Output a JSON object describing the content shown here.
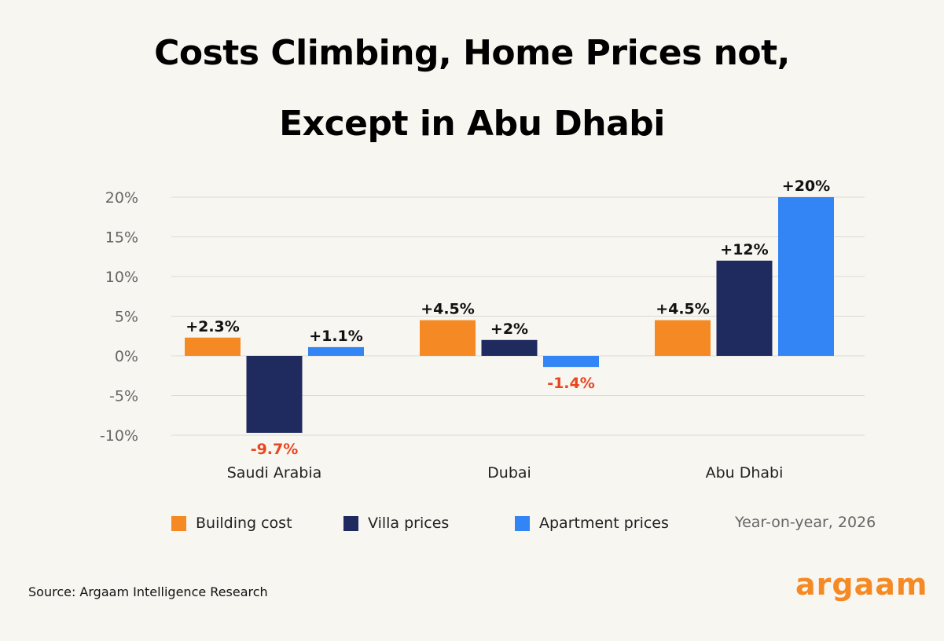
{
  "title_line1": "Costs Climbing, Home Prices not,",
  "title_line2": "Except in Abu Dhabi",
  "legend_note": "Year-on-year, 2026",
  "source": "Source: Argaam Intelligence Research",
  "logo_text": "argaam",
  "colors": {
    "building_cost": "#f58a24",
    "villa_prices": "#1f2a5e",
    "apartment_prices": "#3384f5",
    "negative_label": "#e8461e",
    "gridline": "#dcdad5",
    "tick_label": "#666666",
    "logo": "#f58a24"
  },
  "chart_data": {
    "type": "bar",
    "categories": [
      "Saudi Arabia",
      "Dubai",
      "Abu Dhabi"
    ],
    "series": [
      {
        "name": "Building cost",
        "color_key": "building_cost",
        "values": [
          2.3,
          4.5,
          4.5
        ],
        "labels": [
          "+2.3%",
          "+4.5%",
          "+4.5%"
        ]
      },
      {
        "name": "Villa prices",
        "color_key": "villa_prices",
        "values": [
          -9.7,
          2,
          12
        ],
        "labels": [
          "-9.7%",
          "+2%",
          "+12%"
        ]
      },
      {
        "name": "Apartment prices",
        "color_key": "apartment_prices",
        "values": [
          1.1,
          -1.4,
          20
        ],
        "labels": [
          "+1.1%",
          "-1.4%",
          "+20%"
        ]
      }
    ],
    "ylim": [
      -10,
      20
    ],
    "yticks": [
      -10,
      -5,
      0,
      5,
      10,
      15,
      20
    ],
    "ytick_labels": [
      "-10%",
      "-5%",
      "0%",
      "5%",
      "10%",
      "15%",
      "20%"
    ],
    "grid": true,
    "legend_position": "bottom"
  }
}
